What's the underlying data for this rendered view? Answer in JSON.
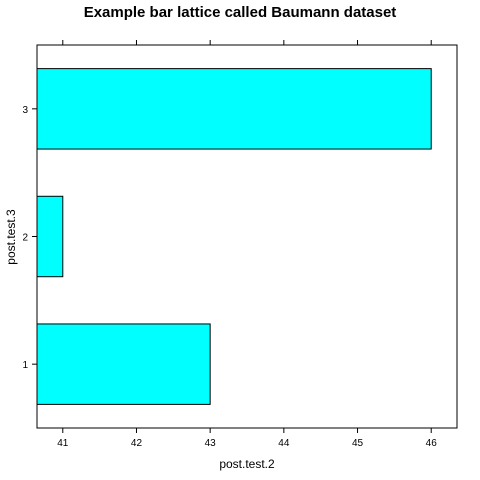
{
  "chart_data": {
    "type": "bar",
    "orientation": "horizontal",
    "title": "Example bar lattice called Baumann dataset",
    "xlabel": "post.test.2",
    "ylabel": "post.test.3",
    "categories": [
      "1",
      "2",
      "3"
    ],
    "values": [
      43,
      41,
      46
    ],
    "xlim": [
      40.65,
      46.35
    ],
    "xticks": [
      41,
      42,
      43,
      44,
      45,
      46
    ],
    "bar_color": "#00FFFF",
    "bar_border_color": "#000000",
    "grid": false,
    "legend": "none"
  }
}
